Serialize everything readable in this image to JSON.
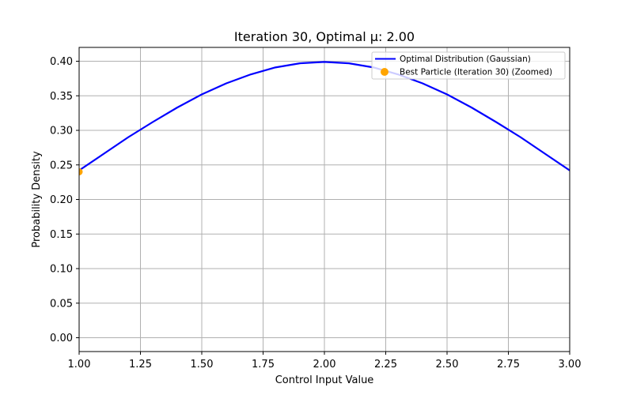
{
  "chart_data": {
    "type": "line",
    "title": "Iteration 30, Optimal μ: 2.00",
    "xlabel": "Control Input Value",
    "ylabel": "Probability Density",
    "xlim": [
      1.0,
      3.0
    ],
    "ylim": [
      -0.02,
      0.42
    ],
    "xticks": [
      1.0,
      1.25,
      1.5,
      1.75,
      2.0,
      2.25,
      2.5,
      2.75,
      3.0
    ],
    "xtick_labels": [
      "1.00",
      "1.25",
      "1.50",
      "1.75",
      "2.00",
      "2.25",
      "2.50",
      "2.75",
      "3.00"
    ],
    "yticks": [
      0.0,
      0.05,
      0.1,
      0.15,
      0.2,
      0.25,
      0.3,
      0.35,
      0.4
    ],
    "ytick_labels": [
      "0.00",
      "0.05",
      "0.10",
      "0.15",
      "0.20",
      "0.25",
      "0.30",
      "0.35",
      "0.40"
    ],
    "grid": true,
    "legend_position": "top-right",
    "series": [
      {
        "name": "Optimal Distribution (Gaussian)",
        "kind": "line",
        "color": "#0000ff",
        "x": [
          1.0,
          1.1,
          1.2,
          1.3,
          1.4,
          1.5,
          1.6,
          1.7,
          1.8,
          1.9,
          2.0,
          2.1,
          2.2,
          2.3,
          2.4,
          2.5,
          2.6,
          2.7,
          2.8,
          2.9,
          3.0
        ],
        "y": [
          0.242,
          0.266,
          0.29,
          0.312,
          0.333,
          0.352,
          0.368,
          0.381,
          0.391,
          0.397,
          0.399,
          0.397,
          0.391,
          0.381,
          0.368,
          0.352,
          0.333,
          0.312,
          0.29,
          0.266,
          0.242
        ]
      },
      {
        "name": "Best Particle (Iteration 30) (Zoomed)",
        "kind": "scatter",
        "color": "#ffa500",
        "x": [
          1.0
        ],
        "y": [
          0.24
        ]
      }
    ]
  }
}
